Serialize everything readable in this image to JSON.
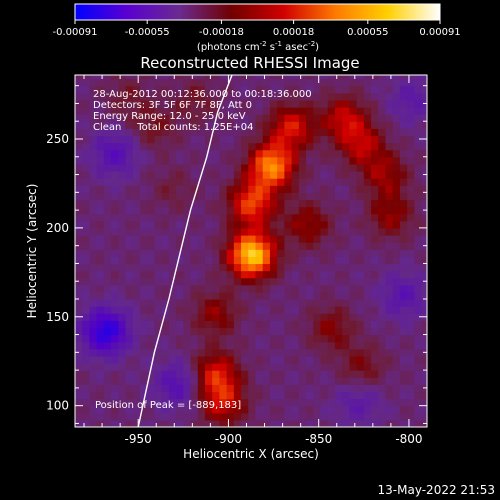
{
  "chart_data": {
    "type": "heatmap",
    "title": "Reconstructed RHESSI Image",
    "xlabel": "Heliocentric X (arcsec)",
    "ylabel": "Heliocentric Y (arcsec)",
    "xlim": [
      -985,
      -790
    ],
    "ylim": [
      88,
      286
    ],
    "x_ticks": [
      -950,
      -900,
      -850,
      -800
    ],
    "x_tick_labels": [
      "-950",
      "-900",
      "-850",
      "-800"
    ],
    "y_ticks": [
      100,
      150,
      200,
      250
    ],
    "y_tick_labels": [
      "100",
      "150",
      "200",
      "250"
    ],
    "colorbar": {
      "ticks": [
        -0.00091,
        -0.00055,
        -0.00018,
        0.00018,
        0.00055,
        0.00091
      ],
      "tick_labels": [
        "-0.00091",
        "-0.00055",
        "-0.00018",
        "0.00018",
        "0.00055",
        "0.00091"
      ],
      "unit_label_parts": [
        "(photons cm",
        "-2",
        " s",
        "-1",
        " asec",
        "-2",
        ")"
      ],
      "colors": [
        "#0000ff",
        "#5a00d0",
        "#6a2a90",
        "#700000",
        "#d00000",
        "#ff7a00",
        "#ffd000",
        "#ffffff"
      ]
    },
    "annotations": [
      "28-Aug-2012 00:12:36.000 to 00:18:36.000",
      "Detectors: 3F 5F 6F 7F 8F, Att 0",
      "Energy Range: 12.0 - 25.0 keV",
      "Clean     Total counts: 1.25E+04"
    ],
    "peak_label": "Position of Peak = [-889,183]",
    "peak": [
      -889,
      183
    ],
    "sources": [
      {
        "x": -889,
        "y": 183,
        "value": 0.00091
      },
      {
        "x": -878,
        "y": 233,
        "value": 0.00072
      },
      {
        "x": -889,
        "y": 212,
        "value": 0.00055
      },
      {
        "x": -867,
        "y": 255,
        "value": 0.00045
      },
      {
        "x": -909,
        "y": 150,
        "value": 0.00028
      },
      {
        "x": -909,
        "y": 116,
        "value": 0.00045
      },
      {
        "x": -905,
        "y": 100,
        "value": 0.0004
      },
      {
        "x": -838,
        "y": 260,
        "value": 0.00038
      },
      {
        "x": -828,
        "y": 245,
        "value": 0.00035
      },
      {
        "x": -815,
        "y": 228,
        "value": 0.0003
      },
      {
        "x": -812,
        "y": 205,
        "value": 0.00028
      },
      {
        "x": -858,
        "y": 200,
        "value": 0.0003
      },
      {
        "x": -845,
        "y": 142,
        "value": 0.00025
      },
      {
        "x": -828,
        "y": 120,
        "value": 0.00022
      },
      {
        "x": -943,
        "y": 255,
        "value": 0.00018
      },
      {
        "x": -958,
        "y": 272,
        "value": 0.00014
      },
      {
        "x": -920,
        "y": 270,
        "value": 0.00016
      },
      {
        "x": -933,
        "y": 220,
        "value": 0.00012
      },
      {
        "x": -970,
        "y": 140,
        "value": -0.0006
      },
      {
        "x": -965,
        "y": 240,
        "value": -0.0003
      },
      {
        "x": -930,
        "y": 110,
        "value": -0.0003
      },
      {
        "x": -805,
        "y": 160,
        "value": -0.00025
      },
      {
        "x": -800,
        "y": 270,
        "value": -0.0002
      },
      {
        "x": -830,
        "y": 100,
        "value": -0.0002
      }
    ],
    "limb": [
      [
        -950,
        88
      ],
      [
        -941,
        130
      ],
      [
        -933,
        160
      ],
      [
        -927,
        185
      ],
      [
        -921,
        210
      ],
      [
        -912,
        240
      ],
      [
        -906,
        265
      ],
      [
        -898,
        286
      ]
    ]
  },
  "footer": {
    "timestamp": "13-May-2022 21:53"
  }
}
